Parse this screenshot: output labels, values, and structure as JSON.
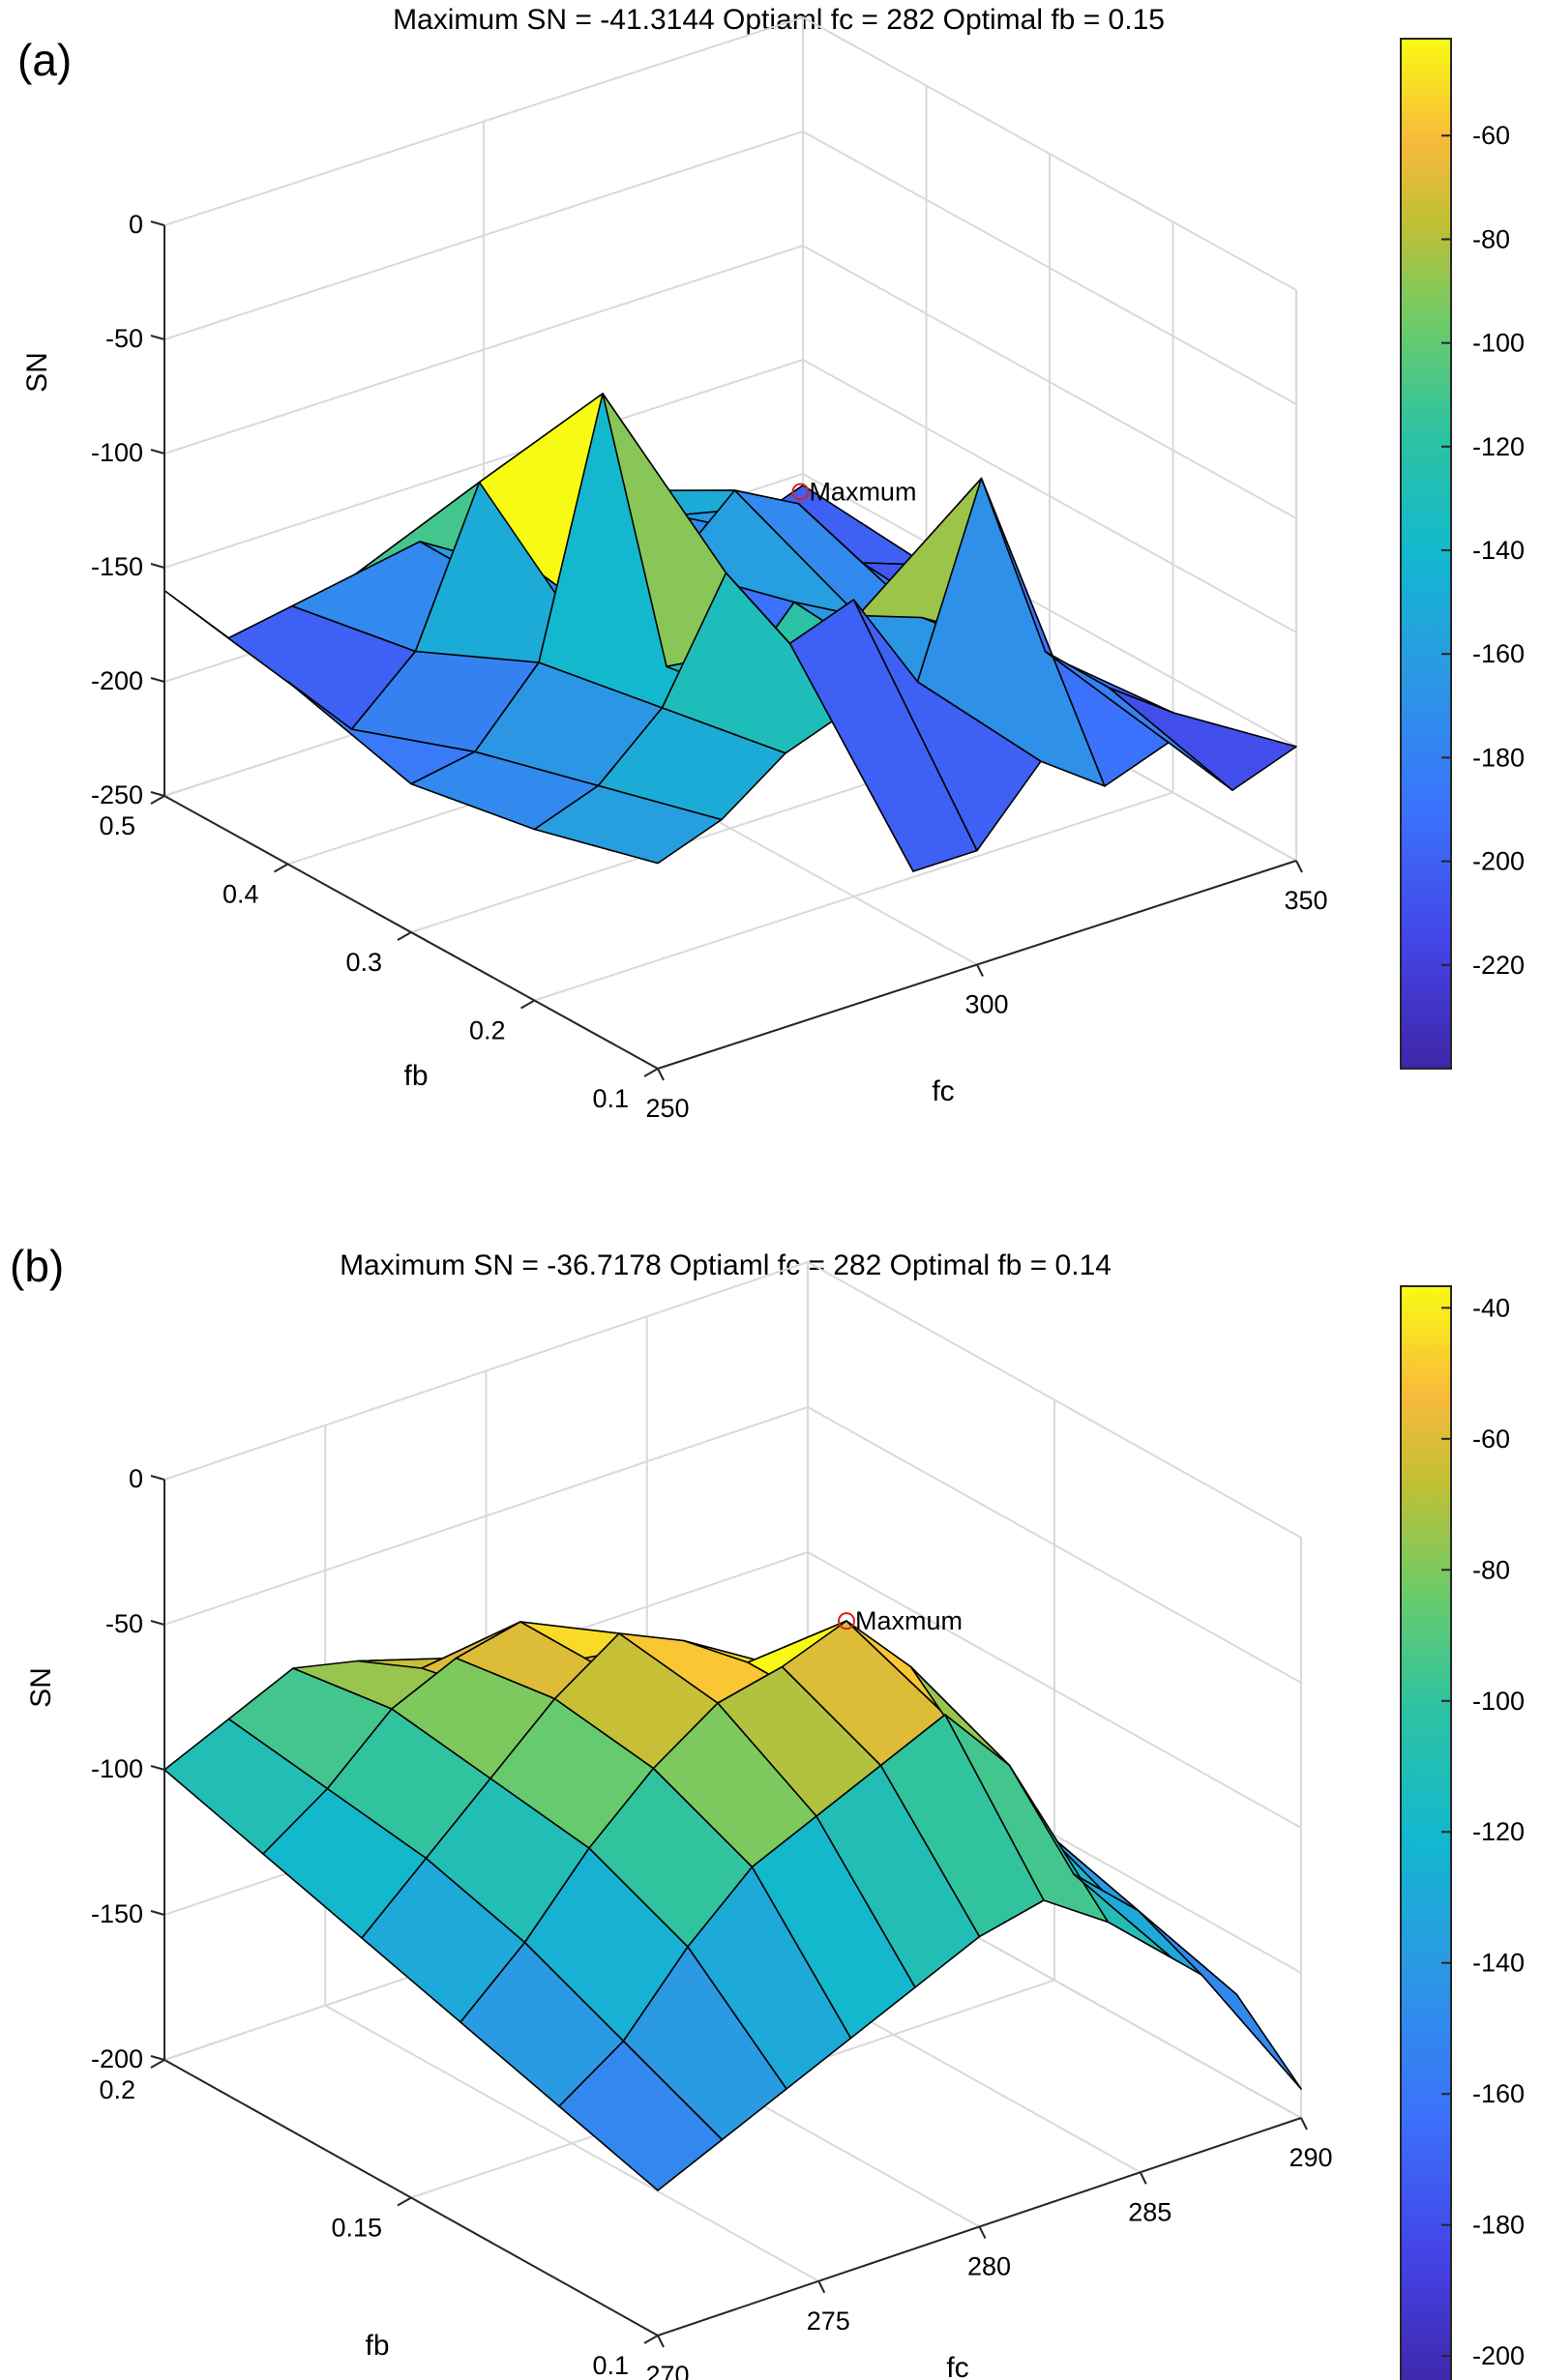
{
  "figure": {
    "panels": [
      {
        "label": "(a)",
        "title": "Maximum SN = -41.3144  Optiaml fc = 282  Optimal fb = 0.15",
        "annotation": "Maxmum",
        "xlabel": "fc",
        "ylabel": "fb",
        "zlabel": "SN",
        "x_ticks": [
          "250",
          "300",
          "350"
        ],
        "y_ticks": [
          "0.1",
          "0.2",
          "0.3",
          "0.4",
          "0.5"
        ],
        "z_ticks": [
          "0",
          "-50",
          "-100",
          "-150",
          "-200",
          "-250"
        ],
        "colorbar_ticks": [
          "-60",
          "-80",
          "-100",
          "-120",
          "-140",
          "-160",
          "-180",
          "-200",
          "-220"
        ]
      },
      {
        "label": "(b)",
        "title": "Maximum SN = -36.7178  Optiaml fc = 282  Optimal fb = 0.14",
        "annotation": "Maxmum",
        "xlabel": "fc",
        "ylabel": "fb",
        "zlabel": "SN",
        "x_ticks": [
          "270",
          "275",
          "280",
          "285",
          "290"
        ],
        "y_ticks": [
          "0.1",
          "0.15",
          "0.2"
        ],
        "z_ticks": [
          "0",
          "-50",
          "-100",
          "-150",
          "-200"
        ],
        "colorbar_ticks": [
          "-40",
          "-60",
          "-80",
          "-100",
          "-120",
          "-140",
          "-160",
          "-180",
          "-200"
        ]
      }
    ]
  },
  "chart_data": [
    {
      "type": "surface",
      "title": "Maximum SN = -41.3144  Optiaml fc = 282  Optimal fb = 0.15",
      "xlabel": "fc",
      "ylabel": "fb",
      "zlabel": "SN",
      "xlim": [
        250,
        350
      ],
      "ylim": [
        0.1,
        0.5
      ],
      "zlim": [
        -250,
        0
      ],
      "colorbar_range": [
        -240,
        -41.3
      ],
      "colormap": "parula",
      "grid": true,
      "max_point": {
        "fc": 282,
        "fb": 0.15,
        "SN": -41.3144,
        "label": "Maxmum"
      },
      "x": [
        250,
        260,
        270,
        280,
        290,
        300,
        310,
        320,
        330,
        340,
        350
      ],
      "y": [
        0.1,
        0.2,
        0.3,
        0.4,
        0.5
      ],
      "z": [
        [
          -160,
          -150,
          -130,
          -120,
          -200,
          -200,
          -170,
          -190,
          -180,
          -210,
          -200
        ],
        [
          -175,
          -165,
          -140,
          -90,
          -130,
          -120,
          -165,
          -85,
          -170,
          -195,
          -215
        ],
        [
          -185,
          -180,
          -150,
          -41.3,
          -170,
          -190,
          -160,
          -175,
          -185,
          -205,
          -220
        ],
        [
          -170,
          -200,
          -175,
          -110,
          -160,
          -210,
          -175,
          -150,
          -165,
          -200,
          -210
        ],
        [
          -160,
          -190,
          -185,
          -180,
          -175,
          -200,
          -190,
          -180,
          -200,
          -215,
          -205
        ]
      ]
    },
    {
      "type": "surface",
      "title": "Maximum SN = -36.7178  Optiaml fc = 282  Optimal fb = 0.14",
      "xlabel": "fc",
      "ylabel": "fb",
      "zlabel": "SN",
      "xlim": [
        270,
        290
      ],
      "ylim": [
        0.1,
        0.2
      ],
      "zlim": [
        -200,
        0
      ],
      "colorbar_range": [
        -205,
        -36.7
      ],
      "colormap": "parula",
      "grid": true,
      "max_point": {
        "fc": 282,
        "fb": 0.14,
        "SN": -36.7178,
        "label": "Maxmum"
      },
      "x": [
        270,
        272,
        274,
        276,
        278,
        280,
        282,
        284,
        286,
        288,
        290
      ],
      "y": [
        0.1,
        0.12,
        0.14,
        0.16,
        0.18,
        0.2
      ],
      "z": [
        [
          -150,
          -140,
          -130,
          -120,
          -110,
          -100,
          -95,
          -110,
          -130,
          -150,
          -190
        ],
        [
          -140,
          -125,
          -100,
          -80,
          -70,
          -60,
          -50,
          -75,
          -120,
          -140,
          -170
        ],
        [
          -130,
          -110,
          -85,
          -65,
          -50,
          -45,
          -36.7,
          -60,
          -100,
          -130,
          -160
        ],
        [
          -120,
          -100,
          -80,
          -60,
          -45,
          -55,
          -70,
          -90,
          -110,
          -140,
          -165
        ],
        [
          -110,
          -95,
          -75,
          -65,
          -60,
          -80,
          -100,
          -120,
          -135,
          -150,
          -170
        ],
        [
          -100,
          -90,
          -80,
          -85,
          -95,
          -110,
          -125,
          -140,
          -150,
          -160,
          -175
        ]
      ]
    }
  ]
}
